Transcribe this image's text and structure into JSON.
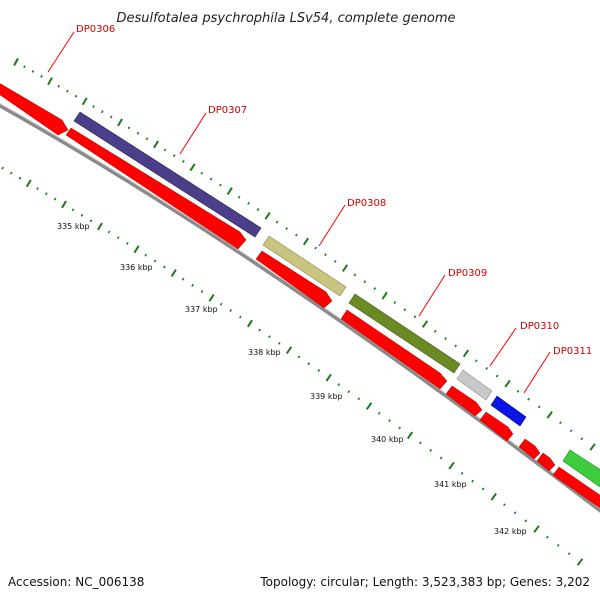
{
  "title": "Desulfotalea psychrophila LSv54, complete genome",
  "footer": {
    "accession": "Accession: NC_006138",
    "summary": "Topology: circular; Length: 3,523,383 bp; Genes: 3,202"
  },
  "colors": {
    "backbone": "#8a8a8a",
    "cds": "#ff0000",
    "tick": "#1a7a1a",
    "label": "#d00000"
  },
  "genes": [
    {
      "id": "DP0306",
      "label": "DP0306",
      "color": "#ff0000"
    },
    {
      "id": "DP0307",
      "label": "DP0307",
      "color": "#4b3f8c"
    },
    {
      "id": "DP0308",
      "label": "DP0308",
      "color": "#c9c580"
    },
    {
      "id": "DP0309",
      "label": "DP0309",
      "color": "#6b8a23"
    },
    {
      "id": "DP0310",
      "label": "DP0310",
      "color": "#c8c8c8"
    },
    {
      "id": "DP0311",
      "label": "DP0311",
      "color": "#0a14e6"
    },
    {
      "id": "next",
      "label": "",
      "color": "#3ccc3c"
    }
  ],
  "scale": {
    "ticks": [
      "335 kbp",
      "336 kbp",
      "337 kbp",
      "338 kbp",
      "339 kbp",
      "340 kbp",
      "341 kbp",
      "342 kbp"
    ]
  }
}
